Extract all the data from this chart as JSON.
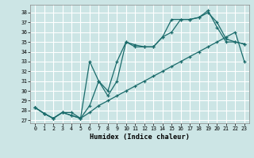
{
  "bg_color": "#cce5e5",
  "line_color": "#1a6b6b",
  "grid_color": "#ffffff",
  "xlabel": "Humidex (Indice chaleur)",
  "xlim": [
    -0.5,
    23.5
  ],
  "ylim": [
    26.7,
    38.8
  ],
  "yticks": [
    27,
    28,
    29,
    30,
    31,
    32,
    33,
    34,
    35,
    36,
    37,
    38
  ],
  "xticks": [
    0,
    1,
    2,
    3,
    4,
    5,
    6,
    7,
    8,
    9,
    10,
    11,
    12,
    13,
    14,
    15,
    16,
    17,
    18,
    19,
    20,
    21,
    22,
    23
  ],
  "line1": {
    "x": [
      0,
      1,
      2,
      3,
      4,
      5,
      6,
      7,
      8,
      9,
      10,
      11,
      12,
      13,
      14,
      15,
      16,
      17,
      18,
      19,
      20,
      21,
      22,
      23
    ],
    "y": [
      28.3,
      27.7,
      27.2,
      27.8,
      27.8,
      27.2,
      27.8,
      28.5,
      29.0,
      29.5,
      30.0,
      30.5,
      31.0,
      31.5,
      32.0,
      32.5,
      33.0,
      33.5,
      34.0,
      34.5,
      35.0,
      35.5,
      36.0,
      33.0
    ]
  },
  "line2": {
    "x": [
      0,
      1,
      2,
      3,
      4,
      5,
      6,
      7,
      8,
      9,
      10,
      11,
      12,
      13,
      14,
      15,
      16,
      17,
      18,
      19,
      20,
      21,
      22,
      23
    ],
    "y": [
      28.3,
      27.7,
      27.2,
      27.8,
      27.5,
      27.2,
      33.0,
      31.0,
      29.5,
      31.0,
      35.0,
      34.5,
      34.5,
      34.5,
      35.5,
      36.0,
      37.3,
      37.3,
      37.5,
      38.0,
      37.0,
      35.3,
      35.0,
      34.8
    ]
  },
  "line3": {
    "x": [
      0,
      1,
      2,
      3,
      4,
      5,
      6,
      7,
      8,
      9,
      10,
      11,
      12,
      13,
      14,
      15,
      16,
      17,
      18,
      19,
      20,
      21,
      22,
      23
    ],
    "y": [
      28.3,
      27.7,
      27.2,
      27.8,
      27.5,
      27.2,
      28.5,
      31.0,
      30.0,
      33.0,
      35.0,
      34.7,
      34.5,
      34.5,
      35.5,
      37.3,
      37.3,
      37.3,
      37.5,
      38.2,
      36.5,
      35.0,
      35.0,
      34.8
    ]
  }
}
